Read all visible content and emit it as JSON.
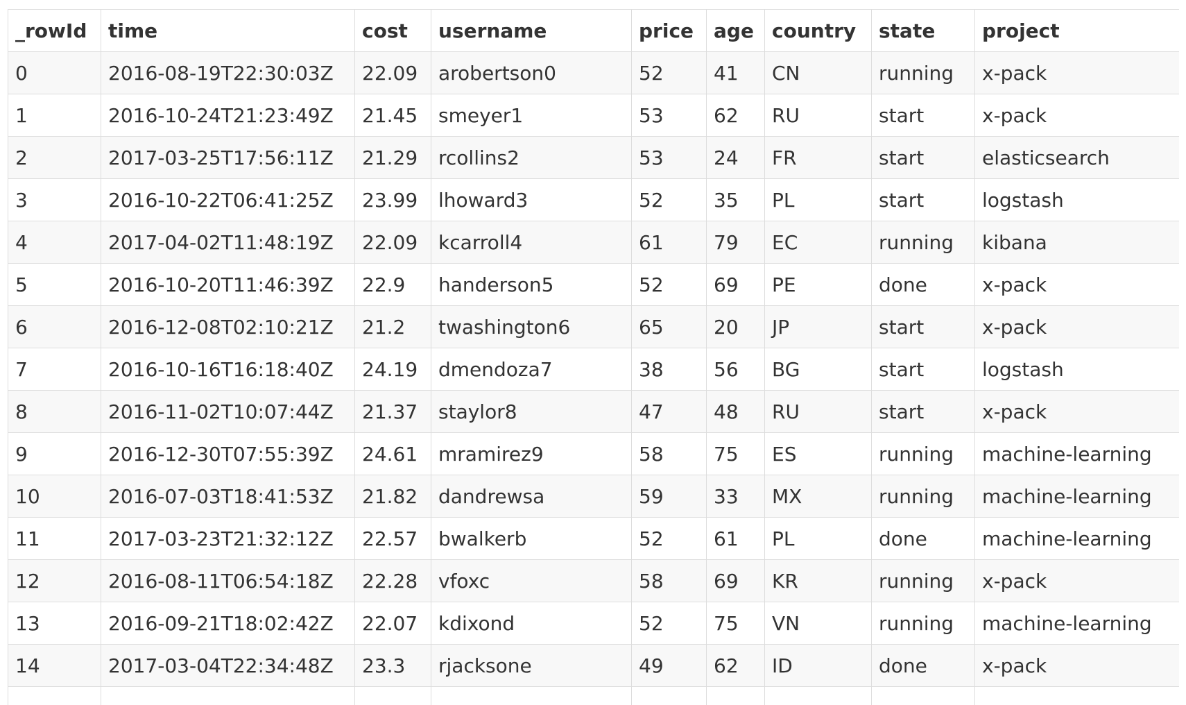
{
  "table": {
    "columns": [
      "_rowId",
      "time",
      "cost",
      "username",
      "price",
      "age",
      "country",
      "state",
      "project"
    ],
    "rows": [
      [
        "0",
        "2016-08-19T22:30:03Z",
        "22.09",
        "arobertson0",
        "52",
        "41",
        "CN",
        "running",
        "x-pack"
      ],
      [
        "1",
        "2016-10-24T21:23:49Z",
        "21.45",
        "smeyer1",
        "53",
        "62",
        "RU",
        "start",
        "x-pack"
      ],
      [
        "2",
        "2017-03-25T17:56:11Z",
        "21.29",
        "rcollins2",
        "53",
        "24",
        "FR",
        "start",
        "elasticsearch"
      ],
      [
        "3",
        "2016-10-22T06:41:25Z",
        "23.99",
        "lhoward3",
        "52",
        "35",
        "PL",
        "start",
        "logstash"
      ],
      [
        "4",
        "2017-04-02T11:48:19Z",
        "22.09",
        "kcarroll4",
        "61",
        "79",
        "EC",
        "running",
        "kibana"
      ],
      [
        "5",
        "2016-10-20T11:46:39Z",
        "22.9",
        "handerson5",
        "52",
        "69",
        "PE",
        "done",
        "x-pack"
      ],
      [
        "6",
        "2016-12-08T02:10:21Z",
        "21.2",
        "twashington6",
        "65",
        "20",
        "JP",
        "start",
        "x-pack"
      ],
      [
        "7",
        "2016-10-16T16:18:40Z",
        "24.19",
        "dmendoza7",
        "38",
        "56",
        "BG",
        "start",
        "logstash"
      ],
      [
        "8",
        "2016-11-02T10:07:44Z",
        "21.37",
        "staylor8",
        "47",
        "48",
        "RU",
        "start",
        "x-pack"
      ],
      [
        "9",
        "2016-12-30T07:55:39Z",
        "24.61",
        "mramirez9",
        "58",
        "75",
        "ES",
        "running",
        "machine-learning"
      ],
      [
        "10",
        "2016-07-03T18:41:53Z",
        "21.82",
        "dandrewsa",
        "59",
        "33",
        "MX",
        "running",
        "machine-learning"
      ],
      [
        "11",
        "2017-03-23T21:32:12Z",
        "22.57",
        "bwalkerb",
        "52",
        "61",
        "PL",
        "done",
        "machine-learning"
      ],
      [
        "12",
        "2016-08-11T06:54:18Z",
        "22.28",
        "vfoxc",
        "58",
        "69",
        "KR",
        "running",
        "x-pack"
      ],
      [
        "13",
        "2016-09-21T18:02:42Z",
        "22.07",
        "kdixond",
        "52",
        "75",
        "VN",
        "running",
        "machine-learning"
      ],
      [
        "14",
        "2017-03-04T22:34:48Z",
        "23.3",
        "rjacksone",
        "49",
        "62",
        "ID",
        "done",
        "x-pack"
      ],
      [
        "",
        "",
        "",
        "",
        "",
        "",
        "",
        "",
        ""
      ]
    ]
  }
}
